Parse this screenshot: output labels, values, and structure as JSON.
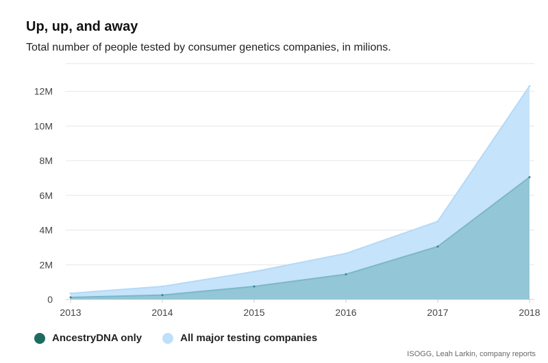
{
  "title": "Up, up, and away",
  "subtitle": "Total number of people tested by consumer genetics companies, in milions.",
  "source": "ISOGG, Leah Larkin, company reports",
  "colors": {
    "ancestry_fill": "#93c6d6",
    "ancestry_line": "#7db6c8",
    "all_fill": "#c5e3fb",
    "all_line": "#b5d9f6",
    "ancestry_legend": "#1d6b5f",
    "all_legend": "#bfe0fb",
    "grid": "#e6e6e6",
    "axis": "#cccccc"
  },
  "legend": [
    {
      "label": "AncestryDNA only",
      "color": "#1d6b5f"
    },
    {
      "label": "All major testing companies",
      "color": "#bfe0fb"
    }
  ],
  "chart_data": {
    "type": "area",
    "title": "Up, up, and away",
    "subtitle": "Total number of people tested by consumer genetics companies, in milions.",
    "x": [
      "2013",
      "2014",
      "2015",
      "2016",
      "2017",
      "2018"
    ],
    "yticks": [
      0,
      2,
      4,
      6,
      8,
      10,
      12
    ],
    "ytick_labels": [
      "0",
      "2M",
      "4M",
      "6M",
      "8M",
      "10M",
      "12M"
    ],
    "ylim": [
      0,
      13.6
    ],
    "grid": true,
    "legend_position": "bottom-left",
    "series": [
      {
        "name": "All major testing companies",
        "values": [
          0.35,
          0.75,
          1.6,
          2.65,
          4.5,
          12.3
        ]
      },
      {
        "name": "AncestryDNA only",
        "values": [
          0.12,
          0.25,
          0.75,
          1.45,
          3.05,
          7.05
        ]
      }
    ]
  }
}
